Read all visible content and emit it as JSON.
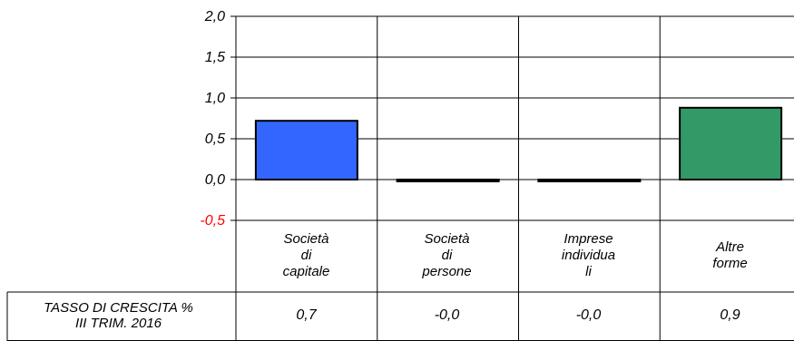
{
  "chart_data": {
    "type": "bar",
    "categories": [
      "Società\ndi\ncapitale",
      "Società\ndi\npersone",
      "Imprese\nindividua\nli",
      "Altre\nforme"
    ],
    "values": [
      0.72,
      -0.02,
      -0.02,
      0.88
    ],
    "colors": [
      "#3366ff",
      "#000000",
      "#000000",
      "#339966"
    ],
    "ylim": [
      -0.5,
      2.0
    ],
    "yticks": [
      "2,0",
      "1,5",
      "1,0",
      "0,5",
      "0,0",
      "-0,5"
    ],
    "ytick_values": [
      2.0,
      1.5,
      1.0,
      0.5,
      0.0,
      -0.5
    ],
    "ytick_colors": [
      "#000000",
      "#000000",
      "#000000",
      "#000000",
      "#000000",
      "#ff0000"
    ],
    "grid": true,
    "table": {
      "row_header": "TASSO DI CRESCITA %\nIII TRIM. 2016",
      "values": [
        "0,7",
        "-0,0",
        "-0,0",
        "0,9"
      ]
    }
  }
}
